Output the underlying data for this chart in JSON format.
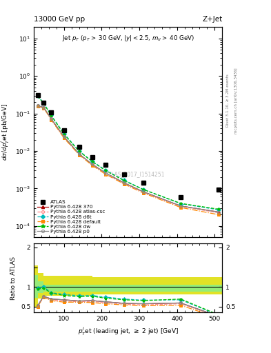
{
  "title_left": "13000 GeV pp",
  "title_right": "Z+Jet",
  "annotation": "Jet p_{T} (p_{T} > 30 GeV, |y| < 2.5, m_{ll} > 40 GeV)",
  "watermark": "ATLAS_2017_I1514251",
  "right_text1": "Rivet 3.1.10, ≥ 3.2M events",
  "right_text2": "mcplots.cern.ch [arXiv:1306.3436]",
  "atlas_x": [
    30,
    46,
    66,
    100,
    140,
    175,
    210,
    260,
    310,
    410,
    510
  ],
  "atlas_y": [
    0.31,
    0.19,
    0.105,
    0.036,
    0.013,
    0.0068,
    0.0042,
    0.0024,
    0.00145,
    0.00058,
    0.00095
  ],
  "pt_x": [
    30,
    46,
    66,
    100,
    140,
    175,
    210,
    260,
    310,
    410,
    510
  ],
  "py370_y": [
    0.16,
    0.145,
    0.072,
    0.024,
    0.0083,
    0.0044,
    0.0026,
    0.0014,
    0.00082,
    0.00034,
    0.000235
  ],
  "pyatlas_y": [
    0.155,
    0.14,
    0.07,
    0.023,
    0.0081,
    0.0043,
    0.0025,
    0.00135,
    0.00079,
    0.00033,
    0.000225
  ],
  "pyd6t_y": [
    0.3,
    0.19,
    0.089,
    0.029,
    0.01,
    0.0053,
    0.0031,
    0.00165,
    0.00095,
    0.00039,
    0.00027
  ],
  "pydefault_y": [
    0.155,
    0.14,
    0.068,
    0.022,
    0.0079,
    0.0041,
    0.0024,
    0.0013,
    0.00076,
    0.00031,
    0.0002
  ],
  "pydw_y": [
    0.29,
    0.185,
    0.088,
    0.028,
    0.0098,
    0.0052,
    0.003,
    0.0016,
    0.00094,
    0.0004,
    0.00028
  ],
  "pyp0_y": [
    0.16,
    0.145,
    0.072,
    0.024,
    0.0083,
    0.0044,
    0.0026,
    0.0014,
    0.00082,
    0.00034,
    0.000235
  ],
  "ratio_x": [
    30,
    46,
    66,
    100,
    140,
    175,
    210,
    260,
    310,
    410,
    510
  ],
  "ratio_py370": [
    0.52,
    0.76,
    0.69,
    0.67,
    0.64,
    0.65,
    0.62,
    0.58,
    0.57,
    0.59,
    0.25
  ],
  "ratio_pyatlas": [
    0.5,
    0.74,
    0.67,
    0.64,
    0.62,
    0.63,
    0.6,
    0.56,
    0.54,
    0.57,
    0.24
  ],
  "ratio_pyd6t": [
    0.97,
    1.0,
    0.85,
    0.81,
    0.77,
    0.78,
    0.74,
    0.69,
    0.66,
    0.67,
    0.28
  ],
  "ratio_pydefault": [
    0.5,
    0.74,
    0.65,
    0.61,
    0.61,
    0.6,
    0.57,
    0.54,
    0.52,
    0.53,
    0.21
  ],
  "ratio_pydw": [
    0.94,
    0.97,
    0.84,
    0.78,
    0.75,
    0.76,
    0.71,
    0.67,
    0.65,
    0.69,
    0.29
  ],
  "ratio_pyp0": [
    0.52,
    0.76,
    0.69,
    0.67,
    0.64,
    0.65,
    0.62,
    0.58,
    0.57,
    0.59,
    0.25
  ],
  "band_edges": [
    20,
    30,
    46,
    66,
    100,
    140,
    175,
    210,
    260,
    310,
    410,
    520
  ],
  "band_inner_lo": [
    0.72,
    0.84,
    0.88,
    0.88,
    0.88,
    0.88,
    0.88,
    0.88,
    0.88,
    0.88,
    0.88
  ],
  "band_inner_hi": [
    1.3,
    1.14,
    1.06,
    1.06,
    1.06,
    1.06,
    1.06,
    1.06,
    1.06,
    1.06,
    1.06
  ],
  "band_outer_lo": [
    0.5,
    0.7,
    0.78,
    0.78,
    0.78,
    0.78,
    0.8,
    0.8,
    0.8,
    0.8,
    0.8
  ],
  "band_outer_hi": [
    1.55,
    1.35,
    1.28,
    1.28,
    1.28,
    1.28,
    1.25,
    1.25,
    1.25,
    1.25,
    1.25
  ],
  "colors": {
    "atlas": "#000000",
    "py370": "#aa0000",
    "pyatlas": "#ff8888",
    "pyd6t": "#00bbbb",
    "pydefault": "#ff8800",
    "pydw": "#00bb00",
    "pyp0": "#888888"
  },
  "xlim": [
    20,
    520
  ],
  "ylim_main": [
    5e-05,
    20
  ],
  "ylim_ratio": [
    0.35,
    2.1
  ],
  "ratio_yticks": [
    0.5,
    1.0,
    1.5,
    2.0
  ],
  "ratio_yticklabels": [
    "0.5",
    "1",
    "",
    "2"
  ]
}
